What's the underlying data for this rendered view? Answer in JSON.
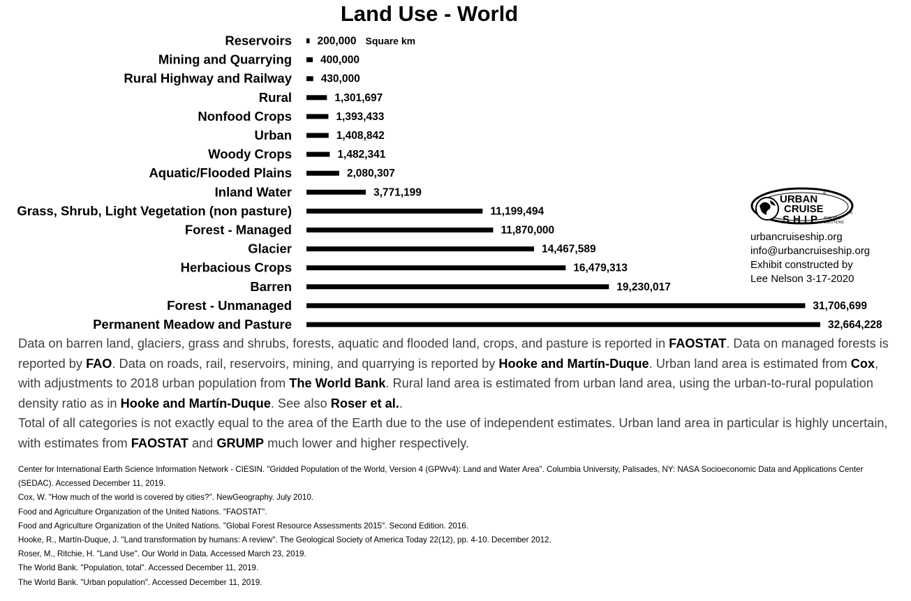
{
  "chart_data": {
    "type": "bar",
    "orientation": "horizontal",
    "title": "Land Use - World",
    "unit_label": "Square km",
    "categories": [
      "Reservoirs",
      "Mining and Quarrying",
      "Rural Highway and Railway",
      "Rural",
      "Nonfood Crops",
      "Urban",
      "Woody Crops",
      "Aquatic/Flooded Plains",
      "Inland Water",
      "Grass, Shrub, Light Vegetation (non pasture)",
      "Forest - Managed",
      "Glacier",
      "Herbacious Crops",
      "Barren",
      "Forest - Unmanaged",
      "Permanent Meadow and Pasture"
    ],
    "values": [
      200000,
      400000,
      430000,
      1301697,
      1393433,
      1408842,
      1482341,
      2080307,
      3771199,
      11199494,
      11870000,
      14467589,
      16479313,
      19230017,
      31706699,
      32664228
    ],
    "value_labels": [
      "200,000",
      "400,000",
      "430,000",
      "1,301,697",
      "1,393,433",
      "1,408,842",
      "1,482,341",
      "2,080,307",
      "3,771,199",
      "11,199,494",
      "11,870,000",
      "14,467,589",
      "16,479,313",
      "19,230,017",
      "31,706,699",
      "32,664,228"
    ],
    "xlim": [
      0,
      32664228
    ],
    "grid": false,
    "bar_color": "#000000"
  },
  "logo": {
    "line1": "URBAN",
    "line2": "CRUISE",
    "line3": "SHIP",
    "tag1": "ANALYSIS",
    "tag2": "SOLUTIONS",
    "reg": "®"
  },
  "contact": {
    "website": "urbancruiseship.org",
    "email": "info@urbancruiseship.org",
    "credit1": "Exhibit constructed by",
    "credit2": "Lee Nelson 3-17-2020"
  },
  "notes": {
    "p1": [
      {
        "t": "Data on barren land, glaciers, grass and shrubs, forests, aquatic and flooded land, crops, and pasture is reported in "
      },
      {
        "t": "FAOSTAT",
        "b": true
      },
      {
        "t": ". Data on managed forests is reported by "
      },
      {
        "t": "FAO",
        "b": true
      },
      {
        "t": ". Data on roads, rail, reservoirs, mining, and quarrying is reported by "
      },
      {
        "t": "Hooke and Martín-Duque",
        "b": true
      },
      {
        "t": ". Urban land area is estimated from "
      },
      {
        "t": "Cox",
        "b": true
      },
      {
        "t": ", with adjustments to 2018 urban population from "
      },
      {
        "t": "The World Bank",
        "b": true
      },
      {
        "t": ". Rural land area is estimated from urban land area, using the urban-to-rural population density ratio as in "
      },
      {
        "t": "Hooke and Martín-Duque",
        "b": true
      },
      {
        "t": ". See also "
      },
      {
        "t": "Roser et al.",
        "b": true
      },
      {
        "t": "."
      }
    ],
    "p2": [
      {
        "t": "Total of all categories is not exactly equal to the area of the Earth due to the use of independent estimates. Urban land area in particular is highly uncertain, with estimates from "
      },
      {
        "t": "FAOSTAT",
        "b": true
      },
      {
        "t": " and "
      },
      {
        "t": "GRUMP",
        "b": true
      },
      {
        "t": " much lower and higher respectively."
      }
    ]
  },
  "references": [
    "Center for International Earth Science Information Network - CIESIN. \"Gridded Population of the World, Version 4 (GPWv4): Land and Water Area\". Columbia University, Palisades, NY: NASA Socioeconomic Data and Applications Center (SEDAC). Accessed December 11, 2019.",
    "Cox, W. \"How much of the world is covered by cities?\". NewGeography. July 2010.",
    "Food and Agriculture Organization of the United Nations. \"FAOSTAT\".",
    "Food and Agriculture Organization of the United Nations. \"Global Forest Resource Assessments 2015\". Second Edition. 2016.",
    "Hooke, R., Martín-Duque, J. \"Land transformation by humans: A review\". The Geological Society of America Today 22(12), pp. 4-10. December 2012.",
    "Roser, M., Ritchie, H. \"Land Use\". Our World in Data. Accessed March 23, 2019.",
    "The World Bank. \"Population, total\". Accessed December 11, 2019.",
    "The World Bank. \"Urban population\". Accessed December 11, 2019."
  ]
}
